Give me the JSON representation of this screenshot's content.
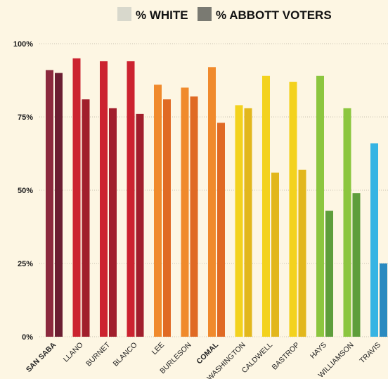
{
  "legend": [
    {
      "label": "% WHITE",
      "color": "#d8d8cc"
    },
    {
      "label": "% ABBOTT VOTERS",
      "color": "#7a7a72"
    }
  ],
  "chart_data": {
    "type": "bar",
    "ylim": [
      0,
      100
    ],
    "y_ticks": [
      0,
      25,
      50,
      75,
      100
    ],
    "y_tick_labels": [
      "0%",
      "25%",
      "50%",
      "75%",
      "100%"
    ],
    "grid": true,
    "legend_placement": "top-center",
    "categories": [
      "SAN SABA",
      "LLANO",
      "BURNET",
      "BLANCO",
      "LEE",
      "BURLESON",
      "COMAL",
      "WASHINGTON",
      "CALDWELL",
      "BASTROP",
      "HAYS",
      "WILLIAMSON",
      "TRAVIS"
    ],
    "bold_categories": [
      "SAN SABA",
      "COMAL"
    ],
    "series": [
      {
        "name": "% WHITE",
        "values": [
          91,
          95,
          94,
          94,
          86,
          85,
          92,
          79,
          89,
          87,
          89,
          78,
          66
        ]
      },
      {
        "name": "% ABBOTT VOTERS",
        "values": [
          90,
          81,
          78,
          76,
          81,
          82,
          73,
          78,
          56,
          57,
          43,
          49,
          25
        ]
      }
    ],
    "colors_white": [
      "#8c2a3e",
      "#cc2330",
      "#cc2330",
      "#cc2330",
      "#f08a2c",
      "#f08a2c",
      "#f08a2c",
      "#f3d21e",
      "#f3d21e",
      "#f3d21e",
      "#8cc63f",
      "#8cc63f",
      "#36b4e3"
    ],
    "colors_abbott": [
      "#6b1e32",
      "#a11f2c",
      "#a11f2c",
      "#a11f2c",
      "#e06a24",
      "#e06a24",
      "#e06a24",
      "#e2b71c",
      "#e2b71c",
      "#e2b71c",
      "#5e9e3b",
      "#5e9e3b",
      "#2a8ac0"
    ]
  }
}
